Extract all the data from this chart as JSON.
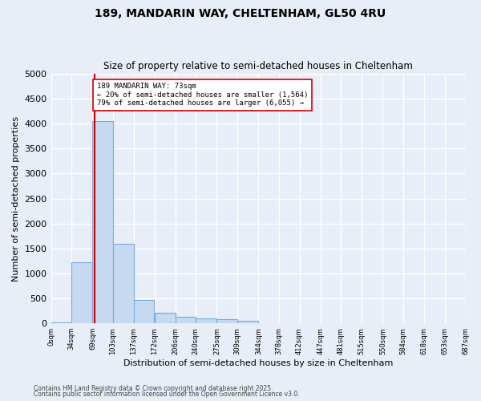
{
  "title1": "189, MANDARIN WAY, CHELTENHAM, GL50 4RU",
  "title2": "Size of property relative to semi-detached houses in Cheltenham",
  "xlabel": "Distribution of semi-detached houses by size in Cheltenham",
  "ylabel": "Number of semi-detached properties",
  "bar_color": "#c6d9f0",
  "bar_edge_color": "#7aaadc",
  "bin_edges": [
    0,
    34,
    69,
    103,
    137,
    172,
    206,
    240,
    275,
    309,
    344,
    378,
    412,
    447,
    481,
    515,
    550,
    584,
    618,
    653,
    687
  ],
  "bar_heights": [
    25,
    1220,
    4050,
    1600,
    470,
    210,
    130,
    90,
    75,
    55,
    0,
    0,
    0,
    0,
    0,
    0,
    0,
    0,
    0,
    0
  ],
  "property_size": 73,
  "vline_color": "#cc0000",
  "annotation_text": "189 MANDARIN WAY: 73sqm\n← 20% of semi-detached houses are smaller (1,564)\n79% of semi-detached houses are larger (6,055) →",
  "annotation_box_color": "#ffffff",
  "annotation_border_color": "#cc0000",
  "footnote1": "Contains HM Land Registry data © Crown copyright and database right 2025.",
  "footnote2": "Contains public sector information licensed under the Open Government Licence v3.0.",
  "ylim": [
    0,
    5000
  ],
  "background_color": "#e8eef7",
  "grid_color": "#ffffff",
  "tick_labels": [
    "0sqm",
    "34sqm",
    "69sqm",
    "103sqm",
    "137sqm",
    "172sqm",
    "206sqm",
    "240sqm",
    "275sqm",
    "309sqm",
    "344sqm",
    "378sqm",
    "412sqm",
    "447sqm",
    "481sqm",
    "515sqm",
    "550sqm",
    "584sqm",
    "618sqm",
    "653sqm",
    "687sqm"
  ]
}
